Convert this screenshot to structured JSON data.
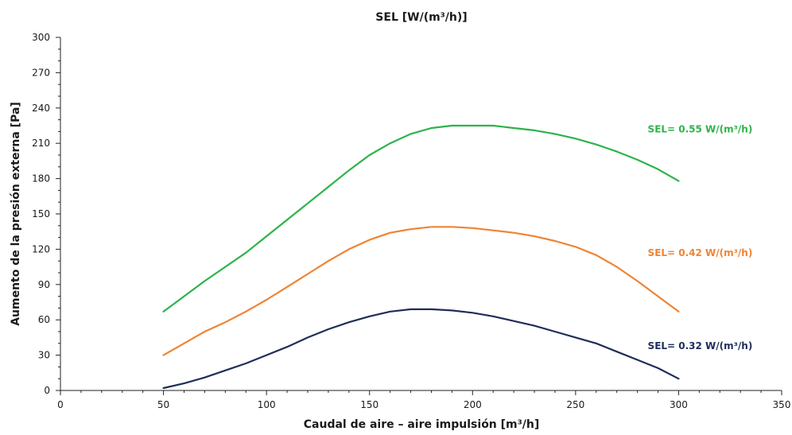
{
  "chart_data": {
    "type": "line",
    "title": "SEL [W/(m³/h)]",
    "xlabel": "Caudal de aire – aire impulsión [m³/h]",
    "ylabel": "Aumento de la presión externa [Pa]",
    "xlim": [
      0,
      350
    ],
    "ylim": [
      0,
      300
    ],
    "xticks": [
      0,
      50,
      100,
      150,
      200,
      250,
      300,
      350
    ],
    "yticks": [
      0,
      30,
      60,
      90,
      120,
      150,
      180,
      210,
      240,
      270,
      300
    ],
    "grid": false,
    "series": [
      {
        "name": "SEL= 0.55 W/(m³/h)",
        "color": "#2db34a",
        "x": [
          50,
          60,
          70,
          80,
          90,
          100,
          110,
          120,
          130,
          140,
          150,
          160,
          170,
          180,
          190,
          200,
          210,
          220,
          230,
          240,
          250,
          260,
          270,
          280,
          290,
          300
        ],
        "y": [
          67,
          80,
          93,
          105,
          117,
          131,
          145,
          159,
          173,
          187,
          200,
          210,
          218,
          223,
          225,
          225,
          225,
          223,
          221,
          218,
          214,
          209,
          203,
          196,
          188,
          178
        ]
      },
      {
        "name": "SEL= 0.42 W/(m³/h)",
        "color": "#ee8434",
        "x": [
          50,
          60,
          70,
          80,
          90,
          100,
          110,
          120,
          130,
          140,
          150,
          160,
          170,
          180,
          190,
          200,
          210,
          220,
          230,
          240,
          250,
          260,
          270,
          280,
          290,
          300
        ],
        "y": [
          30,
          40,
          50,
          58,
          67,
          77,
          88,
          99,
          110,
          120,
          128,
          134,
          137,
          139,
          139,
          138,
          136,
          134,
          131,
          127,
          122,
          115,
          105,
          93,
          80,
          67
        ]
      },
      {
        "name": "SEL= 0.32 W/(m³/h)",
        "color": "#1f2d5a",
        "x": [
          50,
          60,
          70,
          80,
          90,
          100,
          110,
          120,
          130,
          140,
          150,
          160,
          170,
          180,
          190,
          200,
          210,
          220,
          230,
          240,
          250,
          260,
          270,
          280,
          290,
          300
        ],
        "y": [
          2,
          6,
          11,
          17,
          23,
          30,
          37,
          45,
          52,
          58,
          63,
          67,
          69,
          69,
          68,
          66,
          63,
          59,
          55,
          50,
          45,
          40,
          33,
          26,
          19,
          10
        ]
      }
    ]
  }
}
